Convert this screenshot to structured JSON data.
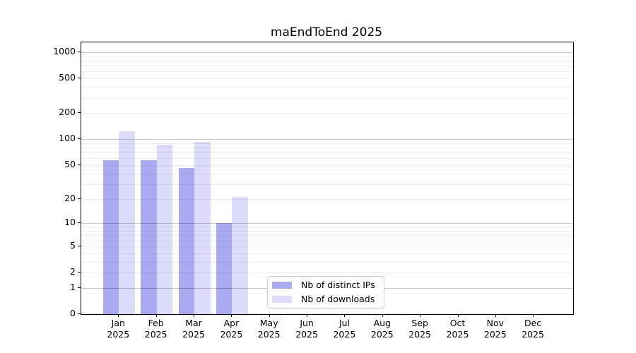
{
  "chart_data": {
    "type": "bar",
    "title": "maEndToEnd 2025",
    "year": "2025",
    "categories": [
      "Jan",
      "Feb",
      "Mar",
      "Apr",
      "May",
      "Jun",
      "Jul",
      "Aug",
      "Sep",
      "Oct",
      "Nov",
      "Dec"
    ],
    "series": [
      {
        "name": "Nb of distinct IPs",
        "color": "#aaaaf2",
        "values": [
          57,
          57,
          46,
          10,
          0,
          0,
          0,
          0,
          0,
          0,
          0,
          0
        ]
      },
      {
        "name": "Nb of downloads",
        "color": "#dcdcfa",
        "values": [
          124,
          86,
          94,
          21,
          0,
          0,
          0,
          0,
          0,
          0,
          0,
          0
        ]
      }
    ],
    "y_axis": {
      "scale": "log1p",
      "ticks": [
        0,
        1,
        2,
        5,
        10,
        20,
        50,
        100,
        200,
        500,
        1000
      ],
      "range": [
        0,
        1000
      ]
    },
    "grid": {
      "on": true,
      "minor_color": "#ededed",
      "major_color": "#c8c8c8"
    },
    "legend": {
      "position": "lower center",
      "entries": [
        "Nb of distinct IPs",
        "Nb of downloads"
      ]
    }
  }
}
